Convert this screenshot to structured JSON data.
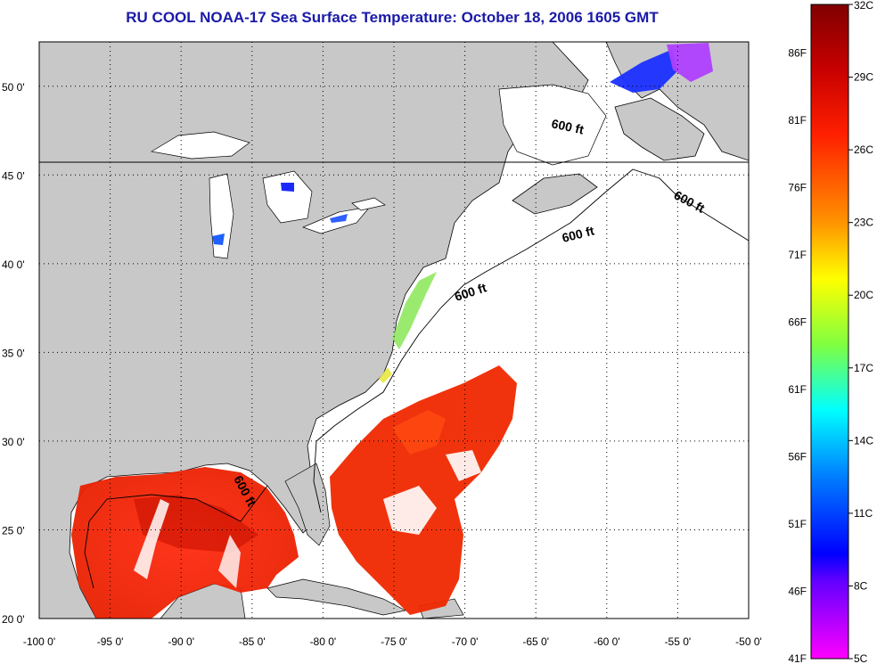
{
  "title": "RU COOL  NOAA-17  Sea Surface Temperature:  October 18, 2006 1605 GMT",
  "map": {
    "lon_ticks": [
      "-100 0'",
      "-95 0'",
      "-90 0'",
      "-85 0'",
      "-80 0'",
      "-75 0'",
      "-70 0'",
      "-65 0'",
      "-60 0'",
      "-55 0'",
      "-50 0'"
    ],
    "lat_ticks": [
      "50 0'",
      "45 0'",
      "40 0'",
      "35 0'",
      "30 0'",
      "25 0'",
      "20 0'"
    ],
    "lon_range": [
      -100,
      -50
    ],
    "lat_range": [
      20,
      52.5
    ],
    "contour_label": "600 ft",
    "contour_labels": [
      "600 ft",
      "600 ft",
      "600 ft",
      "600 ft",
      "600 ft"
    ],
    "land_color": "#c8c8c8",
    "cloud_color": "#ffffff"
  },
  "colorbar": {
    "fahrenheit_labels": [
      "86F",
      "81F",
      "76F",
      "71F",
      "66F",
      "61F",
      "56F",
      "51F",
      "46F",
      "41F"
    ],
    "celsius_labels": [
      "32C",
      "29C",
      "26C",
      "23C",
      "20C",
      "17C",
      "14C",
      "11C",
      "8C",
      "5C"
    ],
    "range_c": [
      5,
      32
    ],
    "colors_top_to_bottom": [
      "#800000",
      "#ff0000",
      "#ff8000",
      "#ffff00",
      "#80ff00",
      "#00ffff",
      "#0080ff",
      "#0000ff",
      "#8000ff",
      "#ff00ff"
    ]
  }
}
